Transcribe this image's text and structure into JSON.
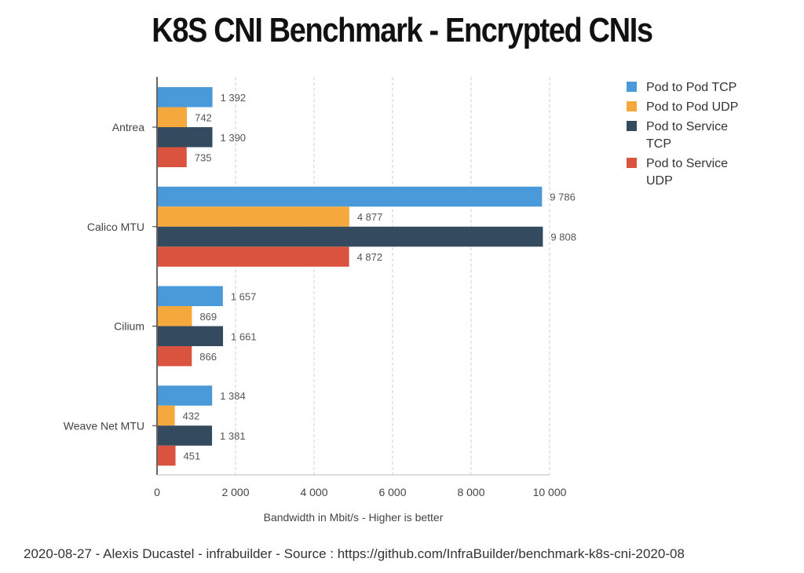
{
  "title": "K8S CNI Benchmark  - Encrypted CNIs",
  "footer": "2020-08-27 - Alexis Ducastel - infrabuilder - Source : https://github.com/InfraBuilder/benchmark-k8s-cni-2020-08",
  "chart_data": {
    "type": "bar",
    "orientation": "horizontal",
    "title": "K8S CNI Benchmark  - Encrypted CNIs",
    "xlabel": "Bandwidth in Mbit/s - Higher is better",
    "ylabel": "",
    "xlim": [
      0,
      10000
    ],
    "xticks": [
      0,
      2000,
      4000,
      6000,
      8000,
      10000
    ],
    "xtick_labels": [
      "0",
      "2 000",
      "4 000",
      "6 000",
      "8 000",
      "10 000"
    ],
    "grid": "vertical dashed",
    "legend_position": "right",
    "categories": [
      "Antrea",
      "Calico MTU",
      "Cilium",
      "Weave Net MTU"
    ],
    "series": [
      {
        "name": "Pod to Pod TCP",
        "color": "#4a9ad9",
        "values": [
          1392,
          9786,
          1657,
          1384
        ],
        "labels": [
          "1 392",
          "9 786",
          "1 657",
          "1 384"
        ]
      },
      {
        "name": "Pod to Pod UDP",
        "color": "#f5a93d",
        "values": [
          742,
          4877,
          869,
          432
        ],
        "labels": [
          "742",
          "4 877",
          "869",
          "432"
        ]
      },
      {
        "name": "Pod to Service TCP",
        "color": "#344a5e",
        "values": [
          1390,
          9808,
          1661,
          1381
        ],
        "labels": [
          "1 390",
          "9 808",
          "1 661",
          "1 381"
        ]
      },
      {
        "name": "Pod to Service UDP",
        "color": "#d9533f",
        "values": [
          735,
          4872,
          866,
          451
        ],
        "labels": [
          "735",
          "4 872",
          "866",
          "451"
        ]
      }
    ]
  }
}
